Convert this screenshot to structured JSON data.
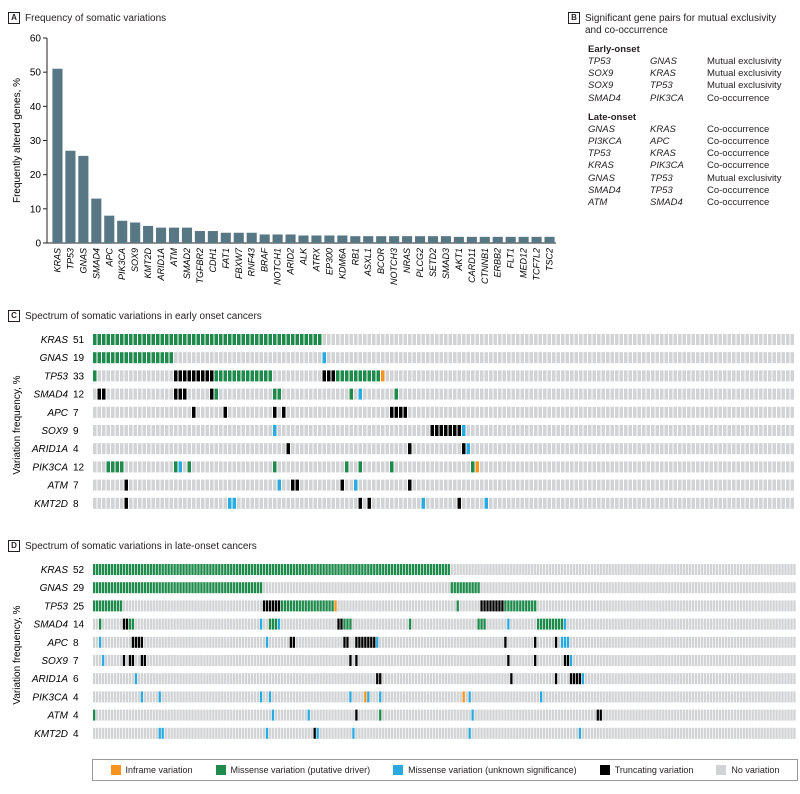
{
  "colors": {
    "bar": "#587784",
    "inframe": "#f7941d",
    "missense_driver": "#1e8a4b",
    "missense_unknown": "#29abe2",
    "truncating": "#000000",
    "none": "#d1d3d4"
  },
  "panel_a": {
    "letter": "A",
    "title": "Frequency of somatic variations"
  },
  "panel_b": {
    "letter": "B",
    "title_line1": "Significant gene pairs for mutual exclusivity",
    "title_line2": "and co-occurrence",
    "groups": [
      {
        "name": "Early-onset",
        "pairs": [
          {
            "gene1": "TP53",
            "gene2": "GNAS",
            "relation": "Mutual exclusivity"
          },
          {
            "gene1": "SOX9",
            "gene2": "KRAS",
            "relation": "Mutual exclusivity"
          },
          {
            "gene1": "SOX9",
            "gene2": "TP53",
            "relation": "Mutual exclusivity"
          },
          {
            "gene1": "SMAD4",
            "gene2": "PIK3CA",
            "relation": "Co-occurrence"
          }
        ]
      },
      {
        "name": "Late-onset",
        "pairs": [
          {
            "gene1": "GNAS",
            "gene2": "KRAS",
            "relation": "Co-occurrence"
          },
          {
            "gene1": "PI3KCA",
            "gene2": "APC",
            "relation": "Co-occurrence"
          },
          {
            "gene1": "TP53",
            "gene2": "KRAS",
            "relation": "Co-occurrence"
          },
          {
            "gene1": "KRAS",
            "gene2": "PIK3CA",
            "relation": "Co-occurrence"
          },
          {
            "gene1": "GNAS",
            "gene2": "TP53",
            "relation": "Mutual exclusivity"
          },
          {
            "gene1": "SMAD4",
            "gene2": "TP53",
            "relation": "Co-occurrence"
          },
          {
            "gene1": "ATM",
            "gene2": "SMAD4",
            "relation": "Co-occurrence"
          }
        ]
      }
    ]
  },
  "panel_c": {
    "letter": "C",
    "title": "Spectrum of somatic variations in early onset cancers",
    "ylabel": "Variation frequency, %"
  },
  "panel_d": {
    "letter": "D",
    "title": "Spectrum of somatic variations in late-onset cancers",
    "ylabel": "Variation frequency, %"
  },
  "legend": [
    {
      "key": "inframe",
      "label": "Inframe variation"
    },
    {
      "key": "missense_driver",
      "label": "Missense variation (putative driver)"
    },
    {
      "key": "missense_unknown",
      "label": "Missense variation (unknown significance)"
    },
    {
      "key": "truncating",
      "label": "Truncating variation"
    },
    {
      "key": "none",
      "label": "No variation"
    }
  ],
  "chart_data": [
    {
      "type": "bar",
      "title": "Frequency of somatic variations",
      "ylabel": "Frequently altered genes, %",
      "ylim": [
        0,
        60
      ],
      "yticks": [
        0,
        10,
        20,
        30,
        40,
        50,
        60
      ],
      "grid": false,
      "categories": [
        "KRAS",
        "TP53",
        "GNAS",
        "SMAD4",
        "APC",
        "PIK3CA",
        "SOX9",
        "KMT2D",
        "ARID1A",
        "ATM",
        "SMAD2",
        "TGFBR2",
        "CDH1",
        "FAT1",
        "FBXW7",
        "RNF43",
        "BRAF",
        "NOTCH1",
        "ARID2",
        "ALK",
        "ATRX",
        "EP300",
        "KDM6A",
        "RB1",
        "ASXL1",
        "BCOR",
        "NOTCH3",
        "NRAS",
        "PLCG2",
        "SETD2",
        "SMAD3",
        "AKT1",
        "CARD11",
        "CTNNB1",
        "ERBB2",
        "FLT1",
        "MED12",
        "TCF7L2",
        "TSC2"
      ],
      "values": [
        51,
        27,
        25.5,
        13,
        8,
        6.5,
        6,
        5,
        4.5,
        4.5,
        4.5,
        3.5,
        3.5,
        3,
        3,
        3,
        2.5,
        2.5,
        2.5,
        2.2,
        2.2,
        2.2,
        2.2,
        2,
        2,
        2,
        2,
        2,
        2,
        2,
        2,
        1.8,
        1.8,
        1.8,
        1.8,
        1.8,
        1.8,
        1.8,
        1.8
      ]
    },
    {
      "type": "oncoprint",
      "title": "Spectrum of somatic variations in early onset cancers",
      "ylabel": "Variation frequency, %",
      "n_samples": 68,
      "genes": [
        {
          "gene": "KRAS",
          "frequency": 51,
          "variants": [
            [
              "md",
              0,
              50
            ]
          ]
        },
        {
          "gene": "GNAS",
          "frequency": 19,
          "variants": [
            [
              "md",
              0,
              17
            ],
            [
              "mu",
              51,
              51
            ]
          ]
        },
        {
          "gene": "TP53",
          "frequency": 33,
          "variants": [
            [
              "md",
              0,
              0
            ],
            [
              "tr",
              18,
              26
            ],
            [
              "md",
              27,
              39
            ],
            [
              "tr",
              51,
              53
            ],
            [
              "md",
              54,
              63
            ],
            [
              "if",
              64,
              64
            ]
          ]
        },
        {
          "gene": "SMAD4",
          "frequency": 12,
          "variants": [
            [
              "tr",
              1,
              2
            ],
            [
              "tr",
              18,
              20
            ],
            [
              "tr",
              26,
              26
            ],
            [
              "md",
              27,
              27
            ],
            [
              "md",
              40,
              41
            ],
            [
              "md",
              57,
              57
            ],
            [
              "mu",
              59,
              59
            ],
            [
              "md",
              67,
              67
            ]
          ]
        },
        {
          "gene": "APC",
          "frequency": 7,
          "variants": [
            [
              "tr",
              22,
              22
            ],
            [
              "tr",
              29,
              29
            ],
            [
              "tr",
              40,
              40
            ],
            [
              "tr",
              42,
              42
            ],
            [
              "tr",
              66,
              69
            ]
          ]
        },
        {
          "gene": "SOX9",
          "frequency": 9,
          "variants": [
            [
              "mu",
              40,
              40
            ],
            [
              "tr",
              75,
              81
            ],
            [
              "mu",
              82,
              82
            ]
          ]
        },
        {
          "gene": "ARID1A",
          "frequency": 4,
          "variants": [
            [
              "tr",
              43,
              43
            ],
            [
              "tr",
              70,
              70
            ],
            [
              "tr",
              82,
              82
            ],
            [
              "mu",
              83,
              83
            ]
          ]
        },
        {
          "gene": "PIK3CA",
          "frequency": 12,
          "variants": [
            [
              "md",
              3,
              6
            ],
            [
              "md",
              18,
              18
            ],
            [
              "mu",
              19,
              19
            ],
            [
              "md",
              21,
              21
            ],
            [
              "md",
              40,
              40
            ],
            [
              "md",
              56,
              56
            ],
            [
              "md",
              59,
              59
            ],
            [
              "md",
              66,
              66
            ],
            [
              "md",
              84,
              84
            ],
            [
              "if",
              85,
              85
            ]
          ]
        },
        {
          "gene": "ATM",
          "frequency": 7,
          "variants": [
            [
              "tr",
              7,
              7
            ],
            [
              "mu",
              41,
              41
            ],
            [
              "tr",
              44,
              45
            ],
            [
              "tr",
              55,
              55
            ],
            [
              "mu",
              58,
              58
            ],
            [
              "tr",
              70,
              70
            ]
          ]
        },
        {
          "gene": "KMT2D",
          "frequency": 8,
          "variants": [
            [
              "tr",
              7,
              7
            ],
            [
              "mu",
              30,
              31
            ],
            [
              "tr",
              59,
              59
            ],
            [
              "tr",
              61,
              61
            ],
            [
              "mu",
              73,
              73
            ],
            [
              "tr",
              81,
              81
            ],
            [
              "mu",
              87,
              87
            ]
          ]
        }
      ]
    },
    {
      "type": "oncoprint",
      "title": "Spectrum of somatic variations in late-onset cancers",
      "ylabel": "Variation frequency, %",
      "n_samples": 230,
      "genes": [
        {
          "gene": "KRAS",
          "frequency": 52,
          "variants": [
            [
              "md",
              0,
              119
            ]
          ]
        },
        {
          "gene": "GNAS",
          "frequency": 29,
          "variants": [
            [
              "md",
              0,
              56
            ],
            [
              "md",
              120,
              129
            ]
          ]
        },
        {
          "gene": "TP53",
          "frequency": 25,
          "variants": [
            [
              "md",
              0,
              9
            ],
            [
              "tr",
              57,
              62
            ],
            [
              "md",
              63,
              80
            ],
            [
              "if",
              81,
              81
            ],
            [
              "md",
              122,
              122
            ],
            [
              "tr",
              130,
              137
            ],
            [
              "md",
              138,
              148
            ]
          ]
        },
        {
          "gene": "SMAD4",
          "frequency": 14,
          "variants": [
            [
              "md",
              2,
              2
            ],
            [
              "tr",
              10,
              11
            ],
            [
              "md",
              12,
              13
            ],
            [
              "mu",
              56,
              56
            ],
            [
              "md",
              59,
              61
            ],
            [
              "mu",
              62,
              62
            ],
            [
              "tr",
              82,
              83
            ],
            [
              "md",
              84,
              86
            ],
            [
              "md",
              106,
              106
            ],
            [
              "md",
              129,
              131
            ],
            [
              "mu",
              139,
              139
            ],
            [
              "md",
              149,
              157
            ],
            [
              "mu",
              158,
              158
            ]
          ]
        },
        {
          "gene": "APC",
          "frequency": 8,
          "variants": [
            [
              "mu",
              2,
              2
            ],
            [
              "tr",
              13,
              16
            ],
            [
              "mu",
              58,
              58
            ],
            [
              "tr",
              66,
              67
            ],
            [
              "tr",
              84,
              85
            ],
            [
              "tr",
              88,
              94
            ],
            [
              "mu",
              95,
              95
            ],
            [
              "tr",
              138,
              138
            ],
            [
              "tr",
              148,
              148
            ],
            [
              "tr",
              155,
              155
            ],
            [
              "mu",
              157,
              159
            ]
          ]
        },
        {
          "gene": "SOX9",
          "frequency": 7,
          "variants": [
            [
              "mu",
              3,
              3
            ],
            [
              "tr",
              10,
              10
            ],
            [
              "tr",
              12,
              13
            ],
            [
              "tr",
              16,
              17
            ],
            [
              "tr",
              86,
              86
            ],
            [
              "tr",
              88,
              88
            ],
            [
              "tr",
              139,
              139
            ],
            [
              "tr",
              148,
              148
            ],
            [
              "tr",
              158,
              159
            ],
            [
              "mu",
              160,
              160
            ]
          ]
        },
        {
          "gene": "ARID1A",
          "frequency": 6,
          "variants": [
            [
              "mu",
              14,
              14
            ],
            [
              "tr",
              95,
              96
            ],
            [
              "tr",
              140,
              140
            ],
            [
              "tr",
              155,
              155
            ],
            [
              "tr",
              160,
              160
            ],
            [
              "tr",
              161,
              163
            ],
            [
              "mu",
              164,
              164
            ]
          ]
        },
        {
          "gene": "PIK3CA",
          "frequency": 4,
          "variants": [
            [
              "mu",
              16,
              16
            ],
            [
              "mu",
              22,
              22
            ],
            [
              "mu",
              56,
              56
            ],
            [
              "mu",
              59,
              59
            ],
            [
              "mu",
              86,
              86
            ],
            [
              "if",
              91,
              91
            ],
            [
              "mu",
              92,
              92
            ],
            [
              "mu",
              96,
              96
            ],
            [
              "if",
              124,
              124
            ],
            [
              "mu",
              126,
              126
            ],
            [
              "mu",
              150,
              150
            ]
          ]
        },
        {
          "gene": "ATM",
          "frequency": 4,
          "variants": [
            [
              "md",
              0,
              0
            ],
            [
              "mu",
              60,
              60
            ],
            [
              "mu",
              72,
              72
            ],
            [
              "tr",
              88,
              88
            ],
            [
              "md",
              96,
              96
            ],
            [
              "mu",
              127,
              127
            ],
            [
              "tr",
              169,
              170
            ]
          ]
        },
        {
          "gene": "KMT2D",
          "frequency": 4,
          "variants": [
            [
              "mu",
              22,
              23
            ],
            [
              "mu",
              58,
              58
            ],
            [
              "tr",
              74,
              74
            ],
            [
              "mu",
              75,
              75
            ],
            [
              "mu",
              87,
              87
            ],
            [
              "mu",
              126,
              126
            ],
            [
              "mu",
              163,
              163
            ]
          ]
        }
      ]
    }
  ]
}
